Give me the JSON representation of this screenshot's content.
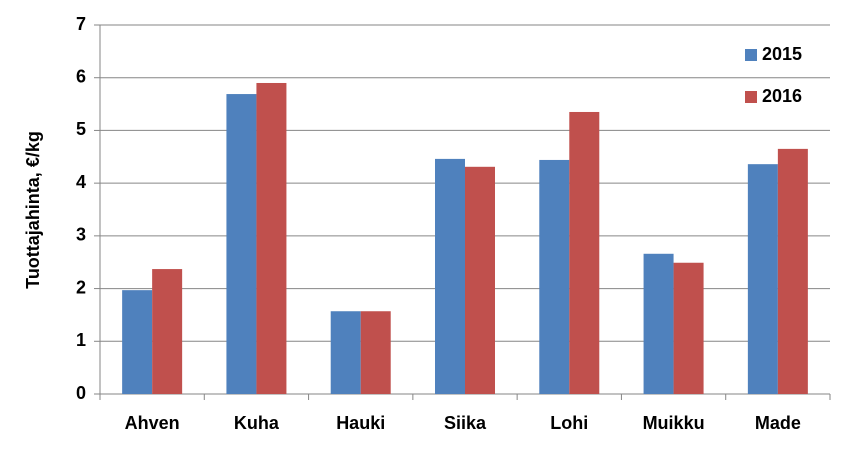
{
  "chart_data": {
    "type": "bar",
    "y_label": "Tuottajahinta, €/kg",
    "categories": [
      "Ahven",
      "Kuha",
      "Hauki",
      "Siika",
      "Lohi",
      "Muikku",
      "Made"
    ],
    "series": [
      {
        "name": "2015",
        "color": "#4f81bd",
        "values": [
          1.97,
          5.69,
          1.57,
          4.46,
          4.44,
          2.66,
          4.36
        ]
      },
      {
        "name": "2016",
        "color": "#c0504d",
        "values": [
          2.37,
          5.9,
          1.57,
          4.31,
          5.35,
          2.49,
          4.65
        ]
      }
    ],
    "ylim": [
      0,
      7
    ],
    "yticks": [
      0,
      1,
      2,
      3,
      4,
      5,
      6,
      7
    ],
    "grid": true,
    "legend": "top-right"
  }
}
